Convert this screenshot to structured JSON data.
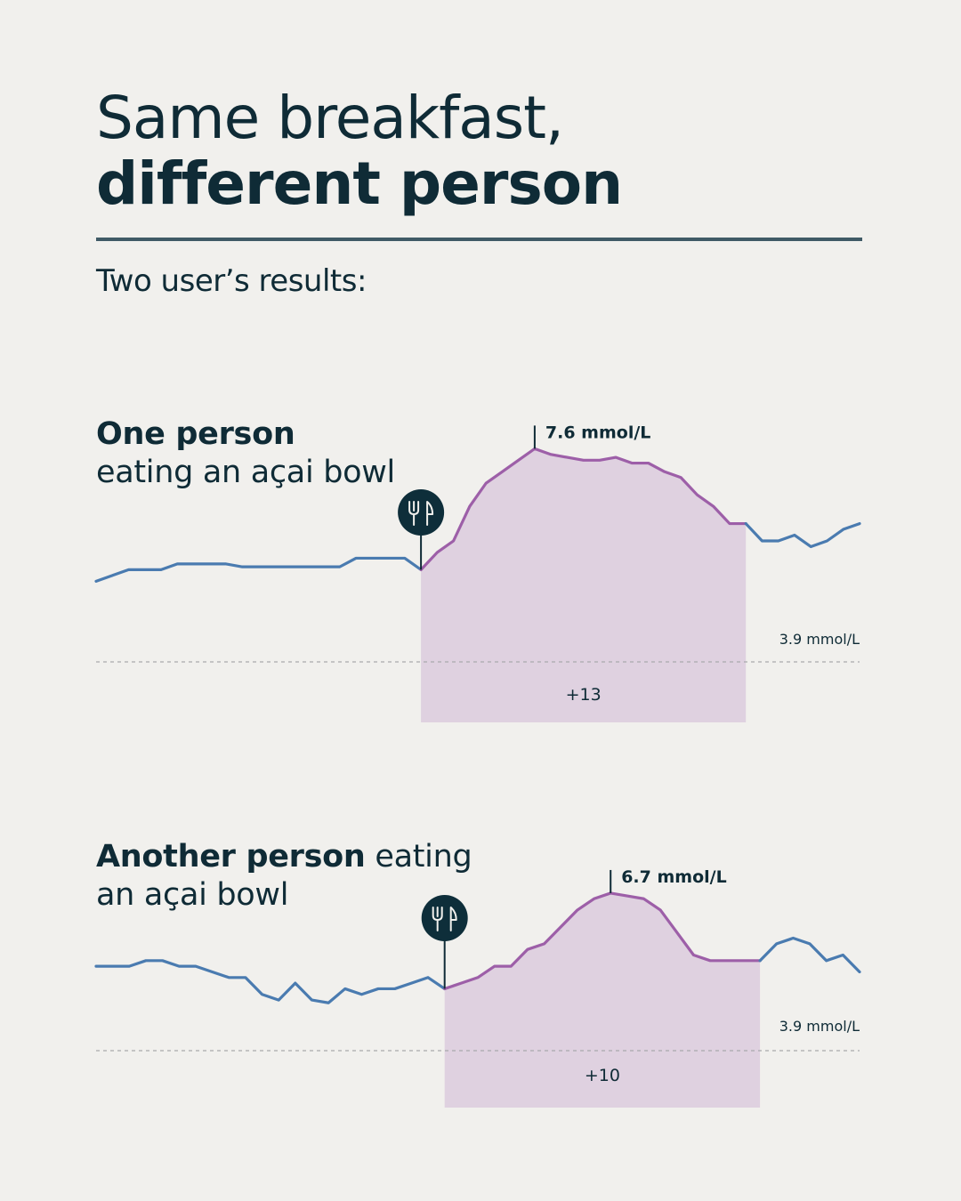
{
  "title": {
    "line1": "Same breakfast,",
    "line2": "different person"
  },
  "subtitle": "Two user’s results:",
  "panels": [
    {
      "label_bold": "One person",
      "label_rest": "eating an açai bowl"
    },
    {
      "label_bold": "Another person",
      "label_rest": " eating an açai bowl"
    }
  ],
  "colors": {
    "baseline_line": "#4a7bb0",
    "response_line": "#9d5fa8",
    "response_fill": "#dfd1e0",
    "text": "#0f2b36",
    "background": "#f1f0ed"
  },
  "icons": {
    "meal_marker": "fork-knife-icon"
  },
  "chart_data": [
    {
      "type": "line",
      "series": [
        {
          "values": [
            5.3,
            5.4,
            5.5,
            5.5,
            5.5,
            5.6,
            5.6,
            5.6,
            5.6,
            5.55,
            5.55,
            5.55,
            5.55,
            5.55,
            5.55,
            5.55,
            5.7,
            5.7,
            5.7,
            5.7,
            5.5,
            5.8,
            6.0,
            6.6,
            7.0,
            7.2,
            7.4,
            7.6,
            7.5,
            7.45,
            7.4,
            7.4,
            7.45,
            7.35,
            7.35,
            7.2,
            7.1,
            6.8,
            6.6,
            6.3,
            6.3,
            6.0,
            6.0,
            6.1,
            5.9,
            6.0,
            6.2,
            6.3
          ]
        }
      ],
      "peak_label": "7.6 mmol/L",
      "reference_label": "3.9 mmol/L",
      "reference_value": 3.9,
      "meal_index": 20,
      "response_end_index": 40,
      "area_label": "+13",
      "ylim": [
        3.0,
        8.1
      ],
      "grid": false
    },
    {
      "type": "line",
      "series": [
        {
          "values": [
            5.4,
            5.4,
            5.4,
            5.5,
            5.5,
            5.4,
            5.4,
            5.3,
            5.2,
            5.2,
            4.9,
            4.8,
            5.1,
            4.8,
            4.75,
            5.0,
            4.9,
            5.0,
            5.0,
            5.1,
            5.2,
            5.0,
            5.1,
            5.2,
            5.4,
            5.4,
            5.7,
            5.8,
            6.1,
            6.4,
            6.6,
            6.7,
            6.65,
            6.6,
            6.4,
            6.0,
            5.6,
            5.5,
            5.5,
            5.5,
            5.5,
            5.8,
            5.9,
            5.8,
            5.5,
            5.6,
            5.3
          ]
        }
      ],
      "peak_label": "6.7 mmol/L",
      "reference_label": "3.9 mmol/L",
      "reference_value": 3.9,
      "meal_index": 21,
      "response_end_index": 40,
      "area_label": "+10",
      "ylim": [
        3.0,
        7.3
      ],
      "grid": false
    }
  ]
}
